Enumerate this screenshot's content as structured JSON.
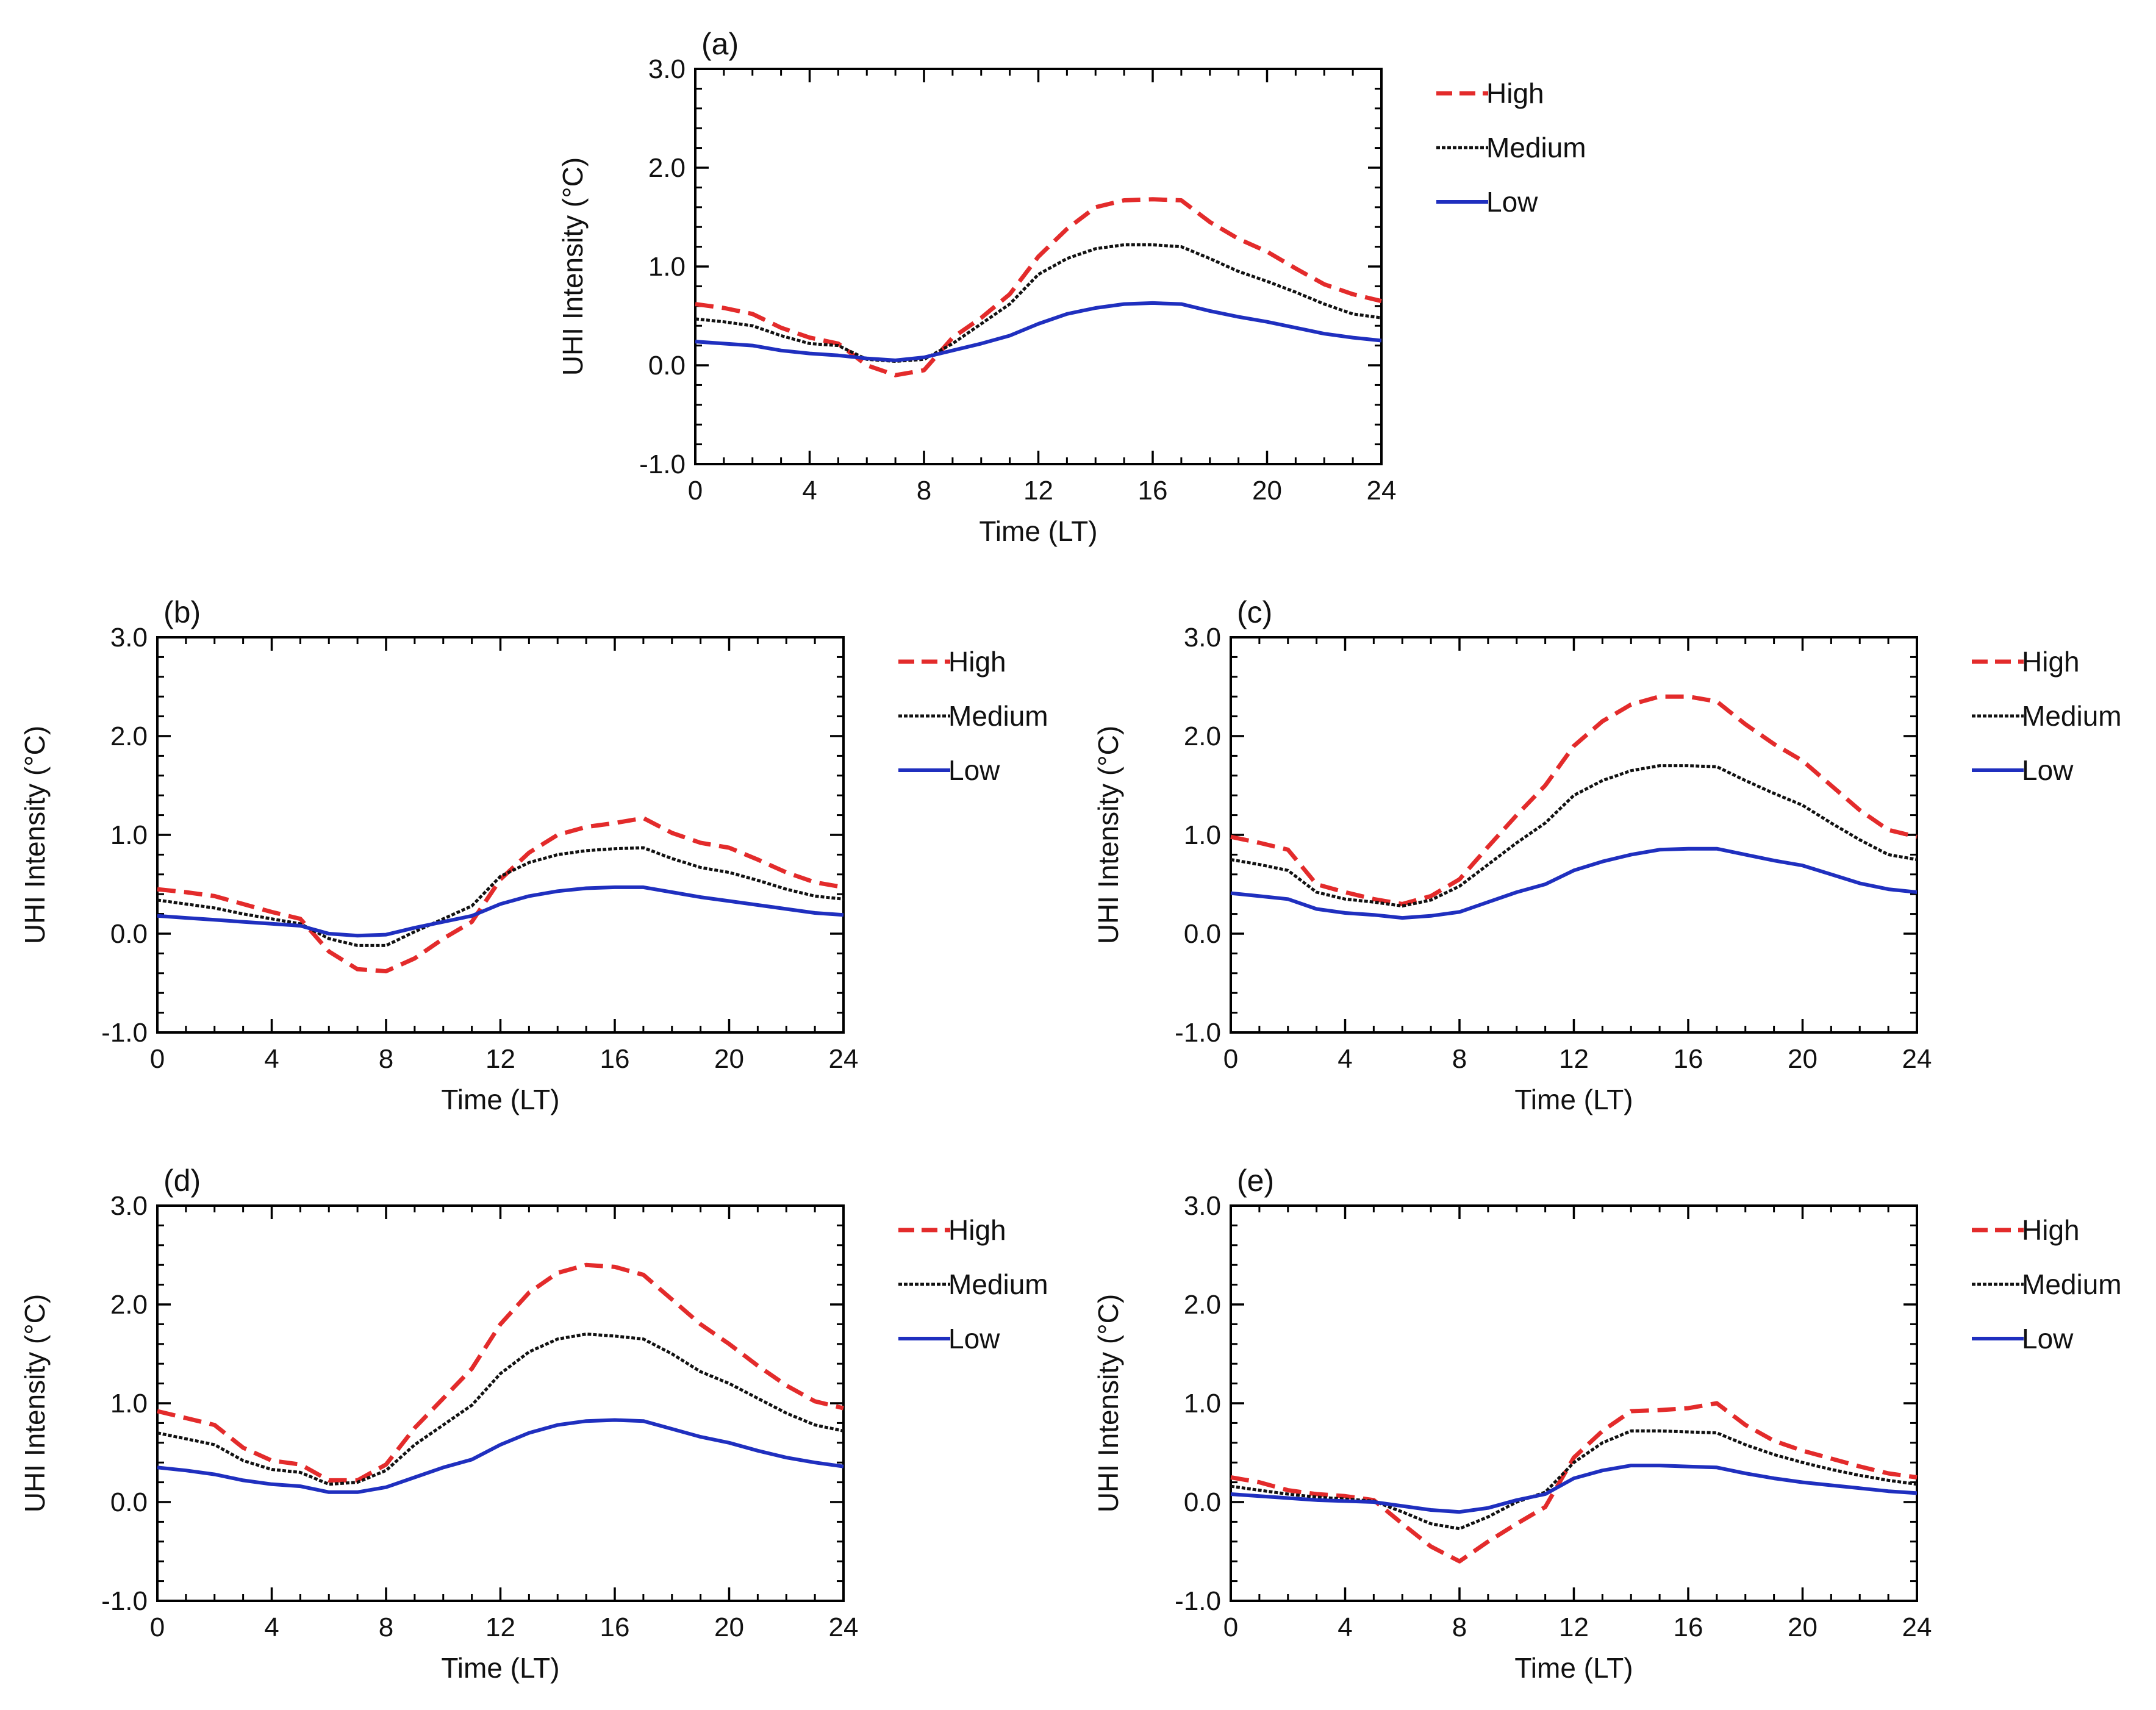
{
  "figure": {
    "description_none": ""
  },
  "series_styles": [
    {
      "name": "High",
      "color": "#e32b2b",
      "dash": "dashed"
    },
    {
      "name": "Medium",
      "color": "#111111",
      "dash": "dotted"
    },
    {
      "name": "Low",
      "color": "#1f2fbf",
      "dash": "solid"
    }
  ],
  "chart_data": [
    {
      "type": "line",
      "panel_label": "(a)",
      "xlabel": "Time (LT)",
      "ylabel": "UHI Intensity (°C)",
      "xlim": [
        0,
        24
      ],
      "ylim": [
        -1.0,
        3.0
      ],
      "x_ticks": [
        "0",
        "4",
        "8",
        "12",
        "16",
        "20",
        "24"
      ],
      "y_ticks": [
        "-1.0",
        "0.0",
        "1.0",
        "2.0",
        "3.0"
      ],
      "legend": [
        "High",
        "Medium",
        "Low"
      ],
      "x": [
        0,
        1,
        2,
        3,
        4,
        5,
        6,
        7,
        8,
        9,
        10,
        11,
        12,
        13,
        14,
        15,
        16,
        17,
        18,
        19,
        20,
        21,
        22,
        23,
        24
      ],
      "series": [
        {
          "name": "High",
          "values": [
            0.62,
            0.58,
            0.52,
            0.38,
            0.28,
            0.22,
            0.0,
            -0.1,
            -0.05,
            0.28,
            0.48,
            0.72,
            1.1,
            1.38,
            1.6,
            1.67,
            1.68,
            1.67,
            1.45,
            1.28,
            1.15,
            0.98,
            0.82,
            0.72,
            0.65
          ]
        },
        {
          "name": "Medium",
          "values": [
            0.47,
            0.44,
            0.4,
            0.3,
            0.22,
            0.2,
            0.06,
            0.04,
            0.06,
            0.22,
            0.42,
            0.62,
            0.92,
            1.08,
            1.18,
            1.22,
            1.22,
            1.2,
            1.08,
            0.95,
            0.85,
            0.74,
            0.62,
            0.52,
            0.48
          ]
        },
        {
          "name": "Low",
          "values": [
            0.24,
            0.22,
            0.2,
            0.15,
            0.12,
            0.1,
            0.07,
            0.05,
            0.08,
            0.15,
            0.22,
            0.3,
            0.42,
            0.52,
            0.58,
            0.62,
            0.63,
            0.62,
            0.55,
            0.49,
            0.44,
            0.38,
            0.32,
            0.28,
            0.25
          ]
        }
      ]
    },
    {
      "type": "line",
      "panel_label": "(b)",
      "xlabel": "Time (LT)",
      "ylabel": "UHI Intensity (°C)",
      "xlim": [
        0,
        24
      ],
      "ylim": [
        -1.0,
        3.0
      ],
      "x_ticks": [
        "0",
        "4",
        "8",
        "12",
        "16",
        "20",
        "24"
      ],
      "y_ticks": [
        "-1.0",
        "0.0",
        "1.0",
        "2.0",
        "3.0"
      ],
      "legend": [
        "High",
        "Medium",
        "Low"
      ],
      "x": [
        0,
        1,
        2,
        3,
        4,
        5,
        6,
        7,
        8,
        9,
        10,
        11,
        12,
        13,
        14,
        15,
        16,
        17,
        18,
        19,
        20,
        21,
        22,
        23,
        24
      ],
      "series": [
        {
          "name": "High",
          "values": [
            0.45,
            0.42,
            0.38,
            0.3,
            0.22,
            0.15,
            -0.18,
            -0.36,
            -0.38,
            -0.25,
            -0.05,
            0.12,
            0.55,
            0.82,
            1.0,
            1.08,
            1.12,
            1.17,
            1.02,
            0.92,
            0.87,
            0.75,
            0.62,
            0.52,
            0.47
          ]
        },
        {
          "name": "Medium",
          "values": [
            0.34,
            0.3,
            0.26,
            0.2,
            0.15,
            0.1,
            -0.05,
            -0.12,
            -0.12,
            0.02,
            0.15,
            0.28,
            0.58,
            0.72,
            0.8,
            0.84,
            0.86,
            0.87,
            0.76,
            0.67,
            0.62,
            0.54,
            0.45,
            0.38,
            0.35
          ]
        },
        {
          "name": "Low",
          "values": [
            0.18,
            0.16,
            0.14,
            0.12,
            0.1,
            0.08,
            0.0,
            -0.02,
            -0.01,
            0.06,
            0.12,
            0.18,
            0.3,
            0.38,
            0.43,
            0.46,
            0.47,
            0.47,
            0.42,
            0.37,
            0.33,
            0.29,
            0.25,
            0.21,
            0.19
          ]
        }
      ]
    },
    {
      "type": "line",
      "panel_label": "(c)",
      "xlabel": "Time (LT)",
      "ylabel": "UHI Intensity (°C)",
      "xlim": [
        0,
        24
      ],
      "ylim": [
        -1.0,
        3.0
      ],
      "x_ticks": [
        "0",
        "4",
        "8",
        "12",
        "16",
        "20",
        "24"
      ],
      "y_ticks": [
        "-1.0",
        "0.0",
        "1.0",
        "2.0",
        "3.0"
      ],
      "legend": [
        "High",
        "Medium",
        "Low"
      ],
      "x": [
        0,
        1,
        2,
        3,
        4,
        5,
        6,
        7,
        8,
        9,
        10,
        11,
        12,
        13,
        14,
        15,
        16,
        17,
        18,
        19,
        20,
        21,
        22,
        23,
        24
      ],
      "series": [
        {
          "name": "High",
          "values": [
            0.98,
            0.92,
            0.85,
            0.5,
            0.42,
            0.35,
            0.3,
            0.38,
            0.55,
            0.88,
            1.2,
            1.5,
            1.9,
            2.15,
            2.32,
            2.4,
            2.4,
            2.35,
            2.12,
            1.92,
            1.75,
            1.5,
            1.25,
            1.05,
            0.98
          ]
        },
        {
          "name": "Medium",
          "values": [
            0.75,
            0.7,
            0.64,
            0.42,
            0.35,
            0.32,
            0.28,
            0.34,
            0.48,
            0.7,
            0.92,
            1.12,
            1.4,
            1.55,
            1.65,
            1.7,
            1.7,
            1.69,
            1.55,
            1.42,
            1.3,
            1.12,
            0.95,
            0.8,
            0.75
          ]
        },
        {
          "name": "Low",
          "values": [
            0.41,
            0.38,
            0.35,
            0.25,
            0.21,
            0.19,
            0.16,
            0.18,
            0.22,
            0.32,
            0.42,
            0.5,
            0.64,
            0.73,
            0.8,
            0.85,
            0.86,
            0.86,
            0.8,
            0.74,
            0.69,
            0.6,
            0.51,
            0.45,
            0.42
          ]
        }
      ]
    },
    {
      "type": "line",
      "panel_label": "(d)",
      "xlabel": "Time (LT)",
      "ylabel": "UHI Intensity (°C)",
      "xlim": [
        0,
        24
      ],
      "ylim": [
        -1.0,
        3.0
      ],
      "x_ticks": [
        "0",
        "4",
        "8",
        "12",
        "16",
        "20",
        "24"
      ],
      "y_ticks": [
        "-1.0",
        "0.0",
        "1.0",
        "2.0",
        "3.0"
      ],
      "legend": [
        "High",
        "Medium",
        "Low"
      ],
      "x": [
        0,
        1,
        2,
        3,
        4,
        5,
        6,
        7,
        8,
        9,
        10,
        11,
        12,
        13,
        14,
        15,
        16,
        17,
        18,
        19,
        20,
        21,
        22,
        23,
        24
      ],
      "series": [
        {
          "name": "High",
          "values": [
            0.92,
            0.85,
            0.78,
            0.55,
            0.42,
            0.38,
            0.22,
            0.22,
            0.38,
            0.75,
            1.05,
            1.35,
            1.8,
            2.12,
            2.32,
            2.4,
            2.38,
            2.3,
            2.05,
            1.8,
            1.6,
            1.38,
            1.18,
            1.02,
            0.95
          ]
        },
        {
          "name": "Medium",
          "values": [
            0.7,
            0.64,
            0.58,
            0.42,
            0.33,
            0.3,
            0.18,
            0.2,
            0.32,
            0.58,
            0.78,
            0.98,
            1.3,
            1.52,
            1.65,
            1.7,
            1.68,
            1.65,
            1.5,
            1.32,
            1.2,
            1.05,
            0.9,
            0.78,
            0.72
          ]
        },
        {
          "name": "Low",
          "values": [
            0.35,
            0.32,
            0.28,
            0.22,
            0.18,
            0.16,
            0.1,
            0.1,
            0.15,
            0.25,
            0.35,
            0.43,
            0.58,
            0.7,
            0.78,
            0.82,
            0.83,
            0.82,
            0.74,
            0.66,
            0.6,
            0.52,
            0.45,
            0.4,
            0.36
          ]
        }
      ]
    },
    {
      "type": "line",
      "panel_label": "(e)",
      "xlabel": "Time (LT)",
      "ylabel": "UHI Intensity (°C)",
      "xlim": [
        0,
        24
      ],
      "ylim": [
        -1.0,
        3.0
      ],
      "x_ticks": [
        "0",
        "4",
        "8",
        "12",
        "16",
        "20",
        "24"
      ],
      "y_ticks": [
        "-1.0",
        "0.0",
        "1.0",
        "2.0",
        "3.0"
      ],
      "legend": [
        "High",
        "Medium",
        "Low"
      ],
      "x": [
        0,
        1,
        2,
        3,
        4,
        5,
        6,
        7,
        8,
        9,
        10,
        11,
        12,
        13,
        14,
        15,
        16,
        17,
        18,
        19,
        20,
        21,
        22,
        23,
        24
      ],
      "series": [
        {
          "name": "High",
          "values": [
            0.25,
            0.2,
            0.12,
            0.08,
            0.06,
            0.02,
            -0.22,
            -0.45,
            -0.6,
            -0.4,
            -0.22,
            -0.05,
            0.45,
            0.72,
            0.92,
            0.93,
            0.95,
            1.0,
            0.78,
            0.62,
            0.52,
            0.44,
            0.36,
            0.29,
            0.25
          ]
        },
        {
          "name": "Medium",
          "values": [
            0.16,
            0.12,
            0.08,
            0.05,
            0.03,
            0.01,
            -0.1,
            -0.22,
            -0.27,
            -0.15,
            0.0,
            0.1,
            0.4,
            0.6,
            0.72,
            0.72,
            0.71,
            0.7,
            0.58,
            0.48,
            0.4,
            0.33,
            0.27,
            0.22,
            0.18
          ]
        },
        {
          "name": "Low",
          "values": [
            0.08,
            0.06,
            0.04,
            0.02,
            0.01,
            0.0,
            -0.04,
            -0.08,
            -0.1,
            -0.06,
            0.02,
            0.08,
            0.24,
            0.32,
            0.37,
            0.37,
            0.36,
            0.35,
            0.29,
            0.24,
            0.2,
            0.17,
            0.14,
            0.11,
            0.09
          ]
        }
      ]
    }
  ]
}
